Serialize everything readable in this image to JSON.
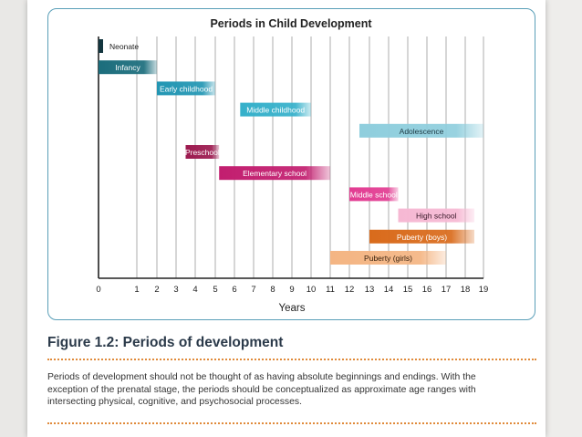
{
  "chart_data": {
    "type": "gantt",
    "title": "Periods in Child Development",
    "xlabel": "Years",
    "xticks": [
      0,
      1,
      2,
      3,
      4,
      5,
      6,
      7,
      8,
      9,
      10,
      11,
      12,
      13,
      14,
      15,
      16,
      17,
      18,
      19
    ],
    "xlim": [
      0,
      19
    ],
    "grid": true,
    "bars": [
      {
        "label": "Neonate",
        "start": 0,
        "end": 0.08,
        "color": "#13363f",
        "text_color": "#222222",
        "fade": false
      },
      {
        "label": "Infancy",
        "start": 0,
        "end": 2,
        "color": "#1b6d7c",
        "text_color": "#ffffff",
        "fade": true
      },
      {
        "label": "Early childhood",
        "start": 2,
        "end": 5,
        "color": "#2296b3",
        "text_color": "#ffffff",
        "fade": true
      },
      {
        "label": "Middle childhood",
        "start": 6.3,
        "end": 10,
        "color": "#35b0ca",
        "text_color": "#ffffff",
        "fade": true
      },
      {
        "label": "Adolescence",
        "start": 12.5,
        "end": 19,
        "color": "#8fcedd",
        "text_color": "#1d3a44",
        "fade": true
      },
      {
        "label": "Preschool",
        "start": 3.5,
        "end": 5.2,
        "color": "#9c1a4f",
        "text_color": "#ffffff",
        "fade": true
      },
      {
        "label": "Elementary school",
        "start": 5.2,
        "end": 11,
        "color": "#c21e6f",
        "text_color": "#ffffff",
        "fade": true
      },
      {
        "label": "Middle school",
        "start": 12,
        "end": 14.5,
        "color": "#e23c92",
        "text_color": "#ffffff",
        "fade": true
      },
      {
        "label": "High school",
        "start": 14.5,
        "end": 18.5,
        "color": "#f6b8d3",
        "text_color": "#3a1a2a",
        "fade": true
      },
      {
        "label": "Puberty (boys)",
        "start": 13,
        "end": 18.5,
        "color": "#d96b1c",
        "text_color": "#ffffff",
        "fade": true
      },
      {
        "label": "Puberty (girls)",
        "start": 11,
        "end": 17,
        "color": "#f4b583",
        "text_color": "#3a2410",
        "fade": true
      }
    ]
  },
  "caption": {
    "figure_title": "Figure 1.2: Periods of development",
    "lines": [
      "Periods of development should not be thought of as having absolute beginnings and endings. With the",
      "exception of the prenatal stage, the periods should be conceptualized as approximate age ranges with",
      "intersecting physical, cognitive, and psychosocial processes."
    ]
  }
}
